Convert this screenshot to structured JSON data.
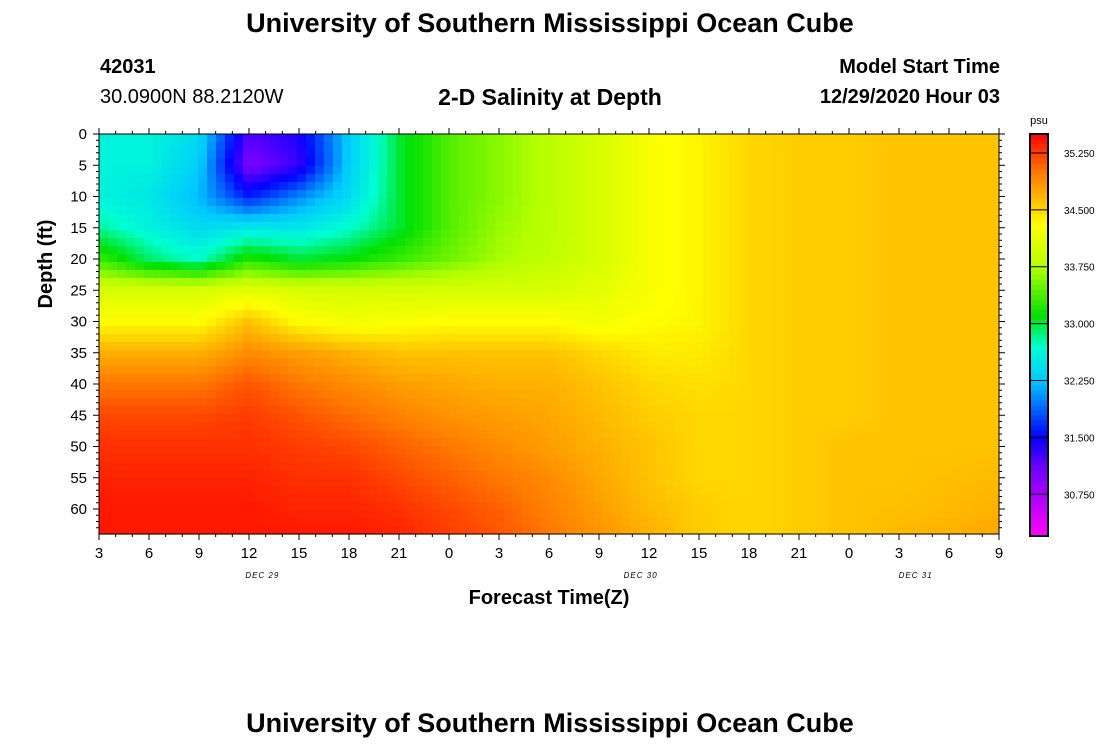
{
  "header": {
    "title": "University of Southern Mississippi Ocean Cube",
    "station_id": "42031",
    "coordinates": "30.0900N 88.2120W",
    "chart_title": "2-D Salinity at Depth",
    "model_label": "Model Start Time",
    "model_time": "12/29/2020 Hour 03"
  },
  "footer": {
    "title": "University of Southern Mississippi Ocean Cube"
  },
  "chart_data": {
    "type": "heatmap",
    "xlabel": "Forecast Time(Z)",
    "ylabel": "Depth (ft)",
    "x_tick_labels": [
      "3",
      "6",
      "9",
      "12",
      "15",
      "18",
      "21",
      "0",
      "3",
      "6",
      "9",
      "12",
      "15",
      "18",
      "21",
      "0",
      "3",
      "6",
      "9"
    ],
    "x_hours": [
      0,
      3,
      6,
      9,
      12,
      15,
      18,
      21,
      24,
      27,
      30,
      33,
      36,
      39,
      42,
      45,
      48,
      51,
      54
    ],
    "date_labels": [
      {
        "label": "DEC 29",
        "hour": 9.8
      },
      {
        "label": "DEC 30",
        "hour": 32.5
      },
      {
        "label": "DEC 31",
        "hour": 49.0
      }
    ],
    "y_tick_labels": [
      "0",
      "5",
      "10",
      "15",
      "20",
      "25",
      "30",
      "35",
      "40",
      "45",
      "50",
      "55",
      "60"
    ],
    "y_ticks": [
      0,
      5,
      10,
      15,
      20,
      25,
      30,
      35,
      40,
      45,
      50,
      55,
      60
    ],
    "ylim": [
      0,
      64
    ],
    "xlim": [
      0,
      54
    ],
    "colorbar": {
      "unit": "psu",
      "labels": [
        "35.250",
        "34.500",
        "33.750",
        "33.000",
        "32.250",
        "31.500",
        "30.750"
      ],
      "values": [
        35.25,
        34.5,
        33.75,
        33.0,
        32.25,
        31.5,
        30.75
      ],
      "range": [
        30.2,
        35.5
      ]
    },
    "grid_hours": [
      0,
      3,
      6,
      9,
      12,
      15,
      18,
      21,
      24,
      27,
      30,
      33,
      36,
      39,
      42,
      45,
      48,
      51,
      54
    ],
    "grid_depths": [
      0,
      5,
      10,
      15,
      20,
      25,
      30,
      35,
      40,
      45,
      50,
      55,
      60,
      64
    ],
    "salinity": [
      [
        32.6,
        32.6,
        32.4,
        31.2,
        31.4,
        32.3,
        33.0,
        33.4,
        33.6,
        33.8,
        34.0,
        34.25,
        34.35,
        34.5,
        34.55,
        34.55,
        34.6,
        34.6,
        34.6
      ],
      [
        32.6,
        32.6,
        32.3,
        31.0,
        31.3,
        32.3,
        33.0,
        33.4,
        33.6,
        33.8,
        34.0,
        34.25,
        34.35,
        34.5,
        34.55,
        34.55,
        34.6,
        34.6,
        34.6
      ],
      [
        32.6,
        32.5,
        32.2,
        31.6,
        32.0,
        32.4,
        33.0,
        33.4,
        33.6,
        33.8,
        34.0,
        34.25,
        34.35,
        34.5,
        34.55,
        34.55,
        34.6,
        34.6,
        34.6
      ],
      [
        32.8,
        32.6,
        32.4,
        32.5,
        32.5,
        32.7,
        33.0,
        33.4,
        33.65,
        33.8,
        34.0,
        34.25,
        34.35,
        34.5,
        34.55,
        34.55,
        34.6,
        34.6,
        34.6
      ],
      [
        33.3,
        32.9,
        32.7,
        33.2,
        33.0,
        33.1,
        33.3,
        33.5,
        33.7,
        33.85,
        34.0,
        34.25,
        34.35,
        34.5,
        34.55,
        34.55,
        34.6,
        34.6,
        34.6
      ],
      [
        34.0,
        34.0,
        34.0,
        34.1,
        34.0,
        34.0,
        34.0,
        34.0,
        34.0,
        34.0,
        34.1,
        34.25,
        34.35,
        34.5,
        34.55,
        34.55,
        34.6,
        34.6,
        34.6
      ],
      [
        34.3,
        34.3,
        34.3,
        34.6,
        34.3,
        34.2,
        34.25,
        34.3,
        34.3,
        34.3,
        34.2,
        34.3,
        34.35,
        34.5,
        34.55,
        34.55,
        34.6,
        34.6,
        34.6
      ],
      [
        34.7,
        34.7,
        34.7,
        34.9,
        34.8,
        34.7,
        34.6,
        34.6,
        34.6,
        34.6,
        34.5,
        34.4,
        34.4,
        34.5,
        34.55,
        34.55,
        34.6,
        34.6,
        34.6
      ],
      [
        35.0,
        35.0,
        35.0,
        35.15,
        35.0,
        34.9,
        34.8,
        34.75,
        34.7,
        34.7,
        34.6,
        34.5,
        34.45,
        34.5,
        34.55,
        34.55,
        34.6,
        34.6,
        34.6
      ],
      [
        35.2,
        35.2,
        35.2,
        35.25,
        35.15,
        35.05,
        34.95,
        34.85,
        34.8,
        34.75,
        34.65,
        34.55,
        34.5,
        34.5,
        34.55,
        34.55,
        34.6,
        34.6,
        34.6
      ],
      [
        35.3,
        35.3,
        35.3,
        35.3,
        35.25,
        35.2,
        35.1,
        35.0,
        34.9,
        34.8,
        34.7,
        34.6,
        34.5,
        34.5,
        34.55,
        34.6,
        34.6,
        34.6,
        34.6
      ],
      [
        35.35,
        35.35,
        35.35,
        35.35,
        35.3,
        35.3,
        35.2,
        35.1,
        35.0,
        34.9,
        34.75,
        34.6,
        34.5,
        34.5,
        34.55,
        34.6,
        34.6,
        34.62,
        34.65
      ],
      [
        35.4,
        35.4,
        35.4,
        35.4,
        35.35,
        35.35,
        35.3,
        35.2,
        35.1,
        34.95,
        34.8,
        34.65,
        34.55,
        34.5,
        34.55,
        34.6,
        34.62,
        34.65,
        34.7
      ],
      [
        35.4,
        35.4,
        35.4,
        35.4,
        35.4,
        35.4,
        35.35,
        35.25,
        35.15,
        35.0,
        34.85,
        34.7,
        34.55,
        34.5,
        34.55,
        34.6,
        34.65,
        34.7,
        34.75
      ]
    ]
  }
}
